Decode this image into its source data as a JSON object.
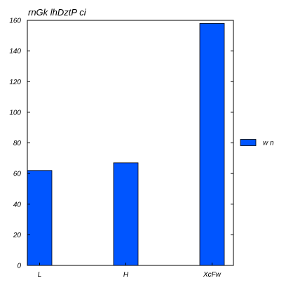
{
  "colors": {
    "bar": "#0055ff",
    "bar_edge": "#000000",
    "axis": "#000000",
    "background": "#ffffff"
  },
  "chart_data": {
    "type": "bar",
    "title": "rnGk lhDztP ci",
    "xlabel": "",
    "ylabel": "",
    "categories": [
      "L",
      "H",
      "XcFw"
    ],
    "series": [
      {
        "name": "w n",
        "values": [
          62,
          67,
          158
        ]
      }
    ],
    "ylim": [
      0,
      160
    ],
    "yticks": [
      0,
      20,
      40,
      60,
      80,
      100,
      120,
      140,
      160
    ],
    "grid": false,
    "legend_position": "right"
  }
}
